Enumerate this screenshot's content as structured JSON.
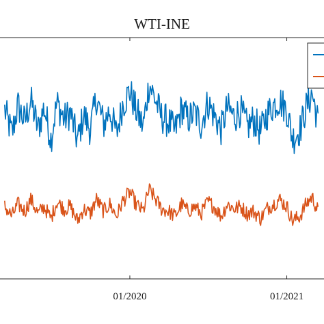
{
  "chart_data": {
    "type": "line",
    "title": "WTI-INE",
    "xlabel": "",
    "ylabel": "",
    "x_ticks": [
      {
        "value": "2020-01-01",
        "label": "01/2020"
      },
      {
        "value": "2021-01-01",
        "label": "01/2021"
      }
    ],
    "xlim": [
      "2019-03-01",
      "2021-04-01"
    ],
    "ylim": [
      0,
      100
    ],
    "grid": false,
    "legend": {
      "placement": "top-right",
      "entries": [
        "",
        ""
      ]
    },
    "series": [
      {
        "color": "#0072BD",
        "x": [
          "2019-03-15",
          "2019-04-01",
          "2019-04-15",
          "2019-05-01",
          "2019-05-15",
          "2019-06-01",
          "2019-06-15",
          "2019-07-01",
          "2019-07-15",
          "2019-08-01",
          "2019-08-15",
          "2019-09-01",
          "2019-09-15",
          "2019-10-01",
          "2019-10-15",
          "2019-11-01",
          "2019-11-15",
          "2019-12-01",
          "2019-12-15",
          "2020-01-01",
          "2020-01-15",
          "2020-02-01",
          "2020-02-15",
          "2020-03-01",
          "2020-03-15",
          "2020-04-01",
          "2020-04-15",
          "2020-05-01",
          "2020-05-15",
          "2020-06-01",
          "2020-06-15",
          "2020-07-01",
          "2020-07-15",
          "2020-08-01",
          "2020-08-15",
          "2020-09-01",
          "2020-09-15",
          "2020-10-01",
          "2020-10-15",
          "2020-11-01",
          "2020-11-15",
          "2020-12-01",
          "2020-12-15",
          "2021-01-01",
          "2021-01-15",
          "2021-02-01",
          "2021-02-15",
          "2021-03-01",
          "2021-03-15"
        ],
        "values": [
          70,
          60,
          72,
          65,
          74,
          62,
          71,
          58,
          73,
          66,
          69,
          57,
          68,
          62,
          75,
          64,
          70,
          60,
          72,
          78,
          70,
          63,
          81,
          74,
          67,
          65,
          61,
          71,
          66,
          69,
          64,
          73,
          68,
          62,
          71,
          67,
          70,
          63,
          66,
          61,
          68,
          72,
          74,
          70,
          58,
          62,
          71,
          77,
          65
        ]
      },
      {
        "color": "#D95319",
        "x": [
          "2019-03-15",
          "2019-04-01",
          "2019-04-15",
          "2019-05-01",
          "2019-05-15",
          "2019-06-01",
          "2019-06-15",
          "2019-07-01",
          "2019-07-15",
          "2019-08-01",
          "2019-08-15",
          "2019-09-01",
          "2019-09-15",
          "2019-10-01",
          "2019-10-15",
          "2019-11-01",
          "2019-11-15",
          "2019-12-01",
          "2019-12-15",
          "2020-01-01",
          "2020-01-15",
          "2020-02-01",
          "2020-02-15",
          "2020-03-01",
          "2020-03-15",
          "2020-04-01",
          "2020-04-15",
          "2020-05-01",
          "2020-05-15",
          "2020-06-01",
          "2020-06-15",
          "2020-07-01",
          "2020-07-15",
          "2020-08-01",
          "2020-08-15",
          "2020-09-01",
          "2020-09-15",
          "2020-10-01",
          "2020-10-15",
          "2020-11-01",
          "2020-11-15",
          "2020-12-01",
          "2020-12-15",
          "2021-01-01",
          "2021-01-15",
          "2021-02-01",
          "2021-02-15",
          "2021-03-01",
          "2021-03-15"
        ],
        "values": [
          30,
          26,
          31,
          28,
          33,
          27,
          30,
          25,
          32,
          29,
          30,
          24,
          29,
          27,
          33,
          28,
          31,
          26,
          32,
          36,
          31,
          28,
          37,
          33,
          29,
          28,
          26,
          31,
          28,
          30,
          27,
          32,
          30,
          26,
          31,
          29,
          30,
          27,
          28,
          25,
          29,
          31,
          33,
          30,
          24,
          26,
          31,
          34,
          28
        ]
      }
    ]
  }
}
